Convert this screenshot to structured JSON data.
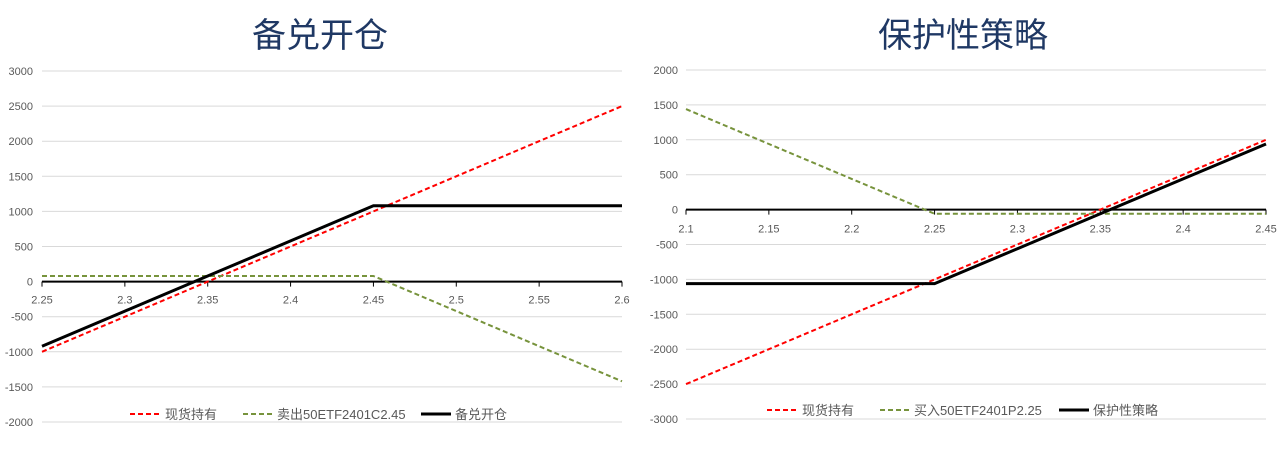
{
  "chart_data": [
    {
      "type": "line",
      "title": "备兑开仓",
      "x": [
        2.25,
        2.3,
        2.35,
        2.4,
        2.45,
        2.5,
        2.55,
        2.6
      ],
      "xlim": [
        2.25,
        2.6
      ],
      "ylim": [
        -2000,
        3000
      ],
      "y_ticks": [
        3000,
        2500,
        2000,
        1500,
        1000,
        500,
        0,
        -500,
        -1000,
        -1500,
        -2000
      ],
      "grid": "horizontal",
      "legend": "bottom",
      "series": [
        {
          "name": "现货持有",
          "color": "#FF0000",
          "style": "dashed",
          "values": [
            -1000,
            -500,
            0,
            500,
            1000,
            1500,
            2000,
            2500
          ]
        },
        {
          "name": "卖出50ETF2401C2.45",
          "color": "#77933C",
          "style": "dashed",
          "values": [
            80,
            80,
            80,
            80,
            80,
            -420,
            -920,
            -1420
          ]
        },
        {
          "name": "备兑开仓",
          "color": "#000000",
          "style": "solid",
          "values": [
            -920,
            -420,
            80,
            580,
            1080,
            1080,
            1080,
            1080
          ]
        }
      ]
    },
    {
      "type": "line",
      "title": "保护性策略",
      "x": [
        2.1,
        2.15,
        2.2,
        2.25,
        2.3,
        2.35,
        2.4,
        2.45
      ],
      "xlim": [
        2.1,
        2.45
      ],
      "ylim": [
        -3000,
        2000
      ],
      "y_ticks": [
        2000,
        1500,
        1000,
        500,
        0,
        -500,
        -1000,
        -1500,
        -2000,
        -2500,
        -3000
      ],
      "grid": "horizontal",
      "legend": "bottom",
      "series": [
        {
          "name": "现货持有",
          "color": "#FF0000",
          "style": "dashed",
          "values": [
            -2500,
            -2000,
            -1500,
            -1000,
            -500,
            0,
            500,
            1000
          ]
        },
        {
          "name": "买入50ETF2401P2.25",
          "color": "#77933C",
          "style": "dashed",
          "values": [
            1440,
            940,
            440,
            -60,
            -60,
            -60,
            -60,
            -60
          ]
        },
        {
          "name": "保护性策略",
          "color": "#000000",
          "style": "solid",
          "values": [
            -1060,
            -1060,
            -1060,
            -1060,
            -560,
            -60,
            440,
            940
          ]
        }
      ]
    }
  ]
}
